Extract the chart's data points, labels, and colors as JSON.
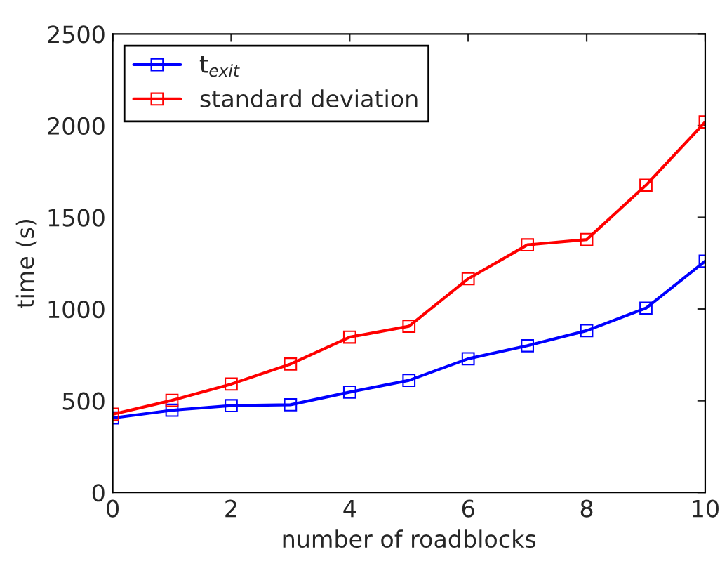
{
  "chart_data": {
    "type": "line",
    "xlabel": "number of roadblocks",
    "ylabel": "time (s)",
    "x": [
      0,
      1,
      2,
      3,
      4,
      5,
      6,
      7,
      8,
      9,
      10
    ],
    "series": [
      {
        "name": "t$_{exit}$",
        "color": "#0000ff",
        "values": [
          406,
          448,
          473,
          478,
          547,
          611,
          729,
          800,
          882,
          1005,
          1261
        ]
      },
      {
        "name": "standard deviation",
        "color": "#ff0000",
        "values": [
          426,
          502,
          591,
          700,
          847,
          906,
          1165,
          1350,
          1379,
          1675,
          2020
        ]
      }
    ],
    "xlim": [
      0,
      10
    ],
    "xticks": [
      0,
      2,
      4,
      6,
      8,
      10
    ],
    "ylim": [
      0,
      2500
    ],
    "yticks": [
      0,
      500,
      1000,
      1500,
      2000,
      2500
    ],
    "marker": "square",
    "line_style": "solid",
    "legend": "top left",
    "grid": false
  }
}
